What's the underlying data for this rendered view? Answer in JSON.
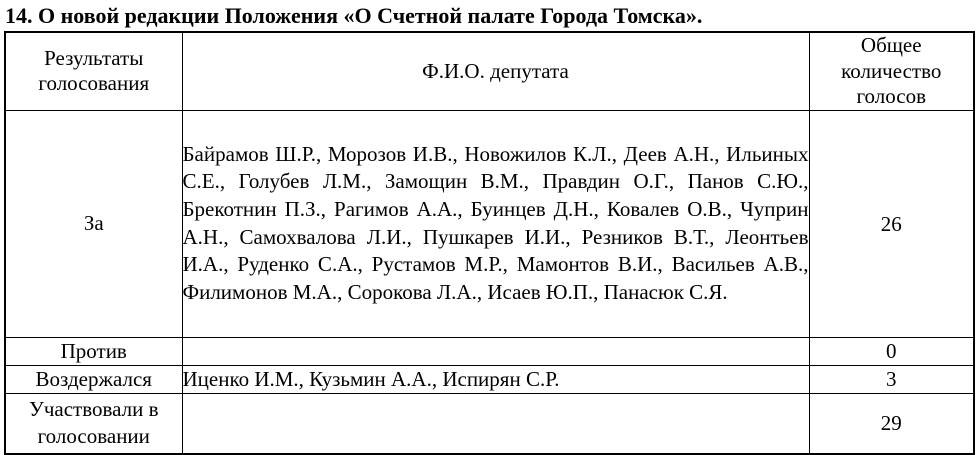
{
  "title": "14. О новой редакции Положения «О Счетной палате Города Томска».",
  "table": {
    "headers": {
      "results": "Результаты голосования",
      "fio": "Ф.И.О. депутата",
      "total": "Общее количество голосов"
    },
    "rows": [
      {
        "result": "За",
        "names": "Байрамов Ш.Р., Морозов И.В., Новожилов К.Л., Деев А.Н., Ильиных С.Е., Голубев Л.М., Замощин В.М., Правдин О.Г., Панов С.Ю., Брекотнин П.З., Рагимов А.А., Буинцев Д.Н., Ковалев О.В., Чуприн А.Н., Самохвалова Л.И., Пушкарев И.И., Резников В.Т., Леонтьев И.А., Руденко С.А., Рустамов М.Р., Мамонтов В.И., Васильев А.В., Филимонов М.А., Сорокова Л.А., Исаев Ю.П., Панасюк С.Я.",
        "count": "26"
      },
      {
        "result": "Против",
        "names": "",
        "count": "0"
      },
      {
        "result": "Воздержался",
        "names": "Иценко И.М., Кузьмин А.А., Испирян С.Р.",
        "count": "3"
      },
      {
        "result": "Участвовали в голосовании",
        "names": "",
        "count": "29"
      }
    ]
  }
}
